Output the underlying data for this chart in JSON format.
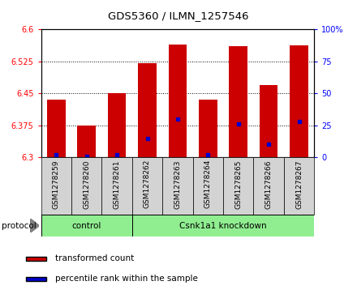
{
  "title": "GDS5360 / ILMN_1257546",
  "samples": [
    "GSM1278259",
    "GSM1278260",
    "GSM1278261",
    "GSM1278262",
    "GSM1278263",
    "GSM1278264",
    "GSM1278265",
    "GSM1278266",
    "GSM1278267"
  ],
  "red_values": [
    6.435,
    6.375,
    6.45,
    6.52,
    6.565,
    6.435,
    6.56,
    6.47,
    6.562
  ],
  "blue_percentiles": [
    2,
    1,
    2,
    15,
    30,
    2,
    26,
    10,
    28
  ],
  "ymin": 6.3,
  "ymax": 6.6,
  "yticks": [
    6.3,
    6.375,
    6.45,
    6.525,
    6.6
  ],
  "right_yticks": [
    0,
    25,
    50,
    75,
    100
  ],
  "protocol_label": "protocol",
  "legend_red_label": "transformed count",
  "legend_blue_label": "percentile rank within the sample",
  "bar_color": "#cc0000",
  "dot_color": "#0000cc",
  "gray_bg": "#d3d3d3",
  "group_bg": "#90ee90",
  "bar_width": 0.6,
  "ctrl_count": 3
}
